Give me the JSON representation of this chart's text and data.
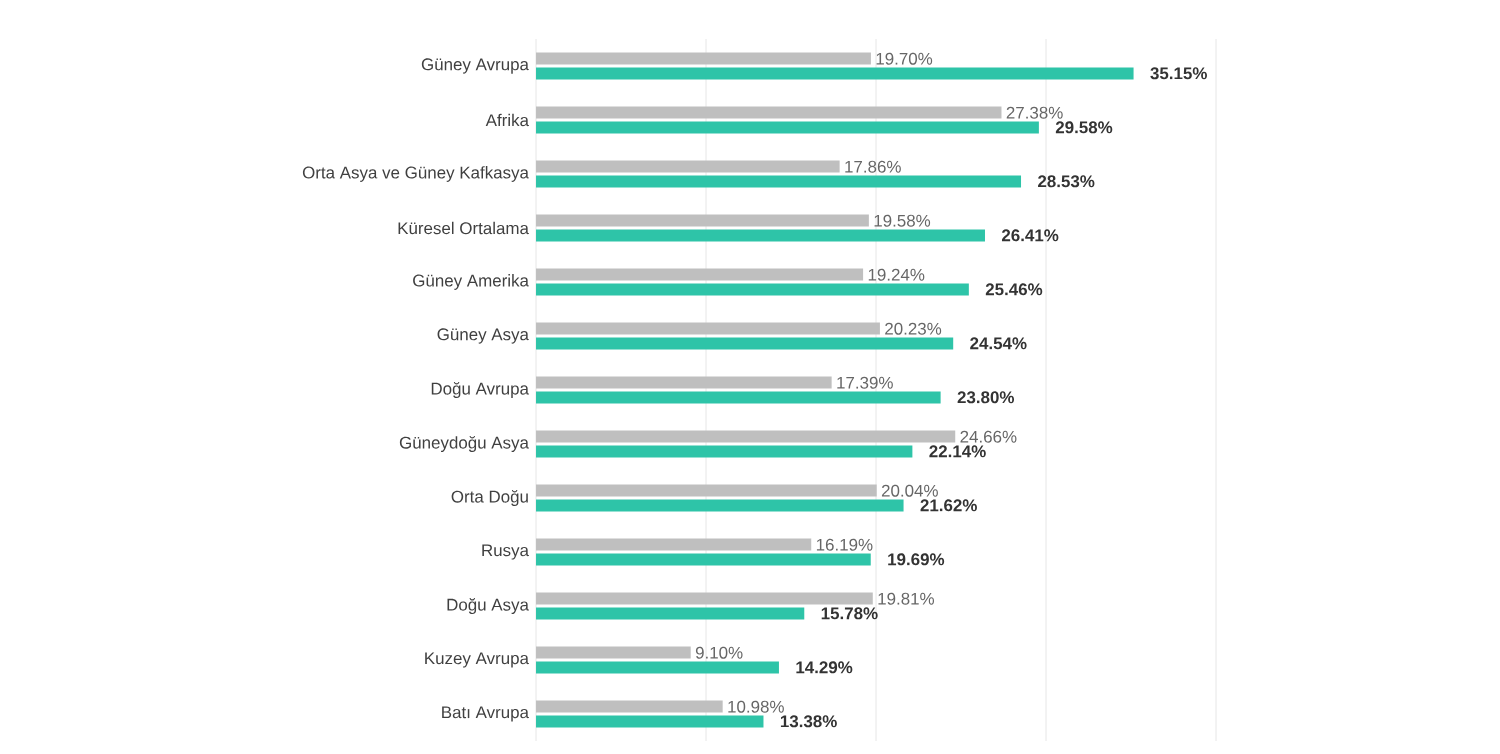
{
  "chart_data": {
    "type": "bar",
    "orientation": "horizontal",
    "categories": [
      "Güney Avrupa",
      "Afrika",
      "Orta Asya ve Güney Kafkasya",
      "Küresel Ortalama",
      "Güney Amerika",
      "Güney Asya",
      "Doğu Avrupa",
      "Güneydoğu Asya",
      "Orta Doğu",
      "Rusya",
      "Doğu Asya",
      "Kuzey Avrupa",
      "Batı Avrupa"
    ],
    "series": [
      {
        "color": "#bfbfbf",
        "values": [
          19.7,
          27.38,
          17.86,
          19.58,
          19.24,
          20.23,
          17.39,
          24.66,
          20.04,
          16.19,
          19.81,
          9.1,
          10.98
        ],
        "value_labels": [
          "19.70%",
          "27.38%",
          "17.86%",
          "19.58%",
          "19.24%",
          "20.23%",
          "17.39%",
          "24.66%",
          "20.04%",
          "16.19%",
          "19.81%",
          "9.10%",
          "10.98%"
        ]
      },
      {
        "color": "#2ec4a8",
        "values": [
          35.15,
          29.58,
          28.53,
          26.41,
          25.46,
          24.54,
          23.8,
          22.14,
          21.62,
          19.69,
          15.78,
          14.29,
          13.38
        ],
        "value_labels": [
          "35.15%",
          "29.58%",
          "28.53%",
          "26.41%",
          "25.46%",
          "24.54%",
          "23.80%",
          "22.14%",
          "21.62%",
          "19.69%",
          "15.78%",
          "14.29%",
          "13.38%"
        ]
      }
    ],
    "xlim": [
      0,
      40
    ],
    "xticks": [
      {
        "value": 0,
        "label": null
      },
      {
        "value": 10,
        "label": null
      },
      {
        "value": 20,
        "label": null
      },
      {
        "value": 30,
        "label": null
      },
      {
        "value": 40,
        "label": null
      }
    ],
    "tick_labels": "y",
    "grid": "x"
  }
}
